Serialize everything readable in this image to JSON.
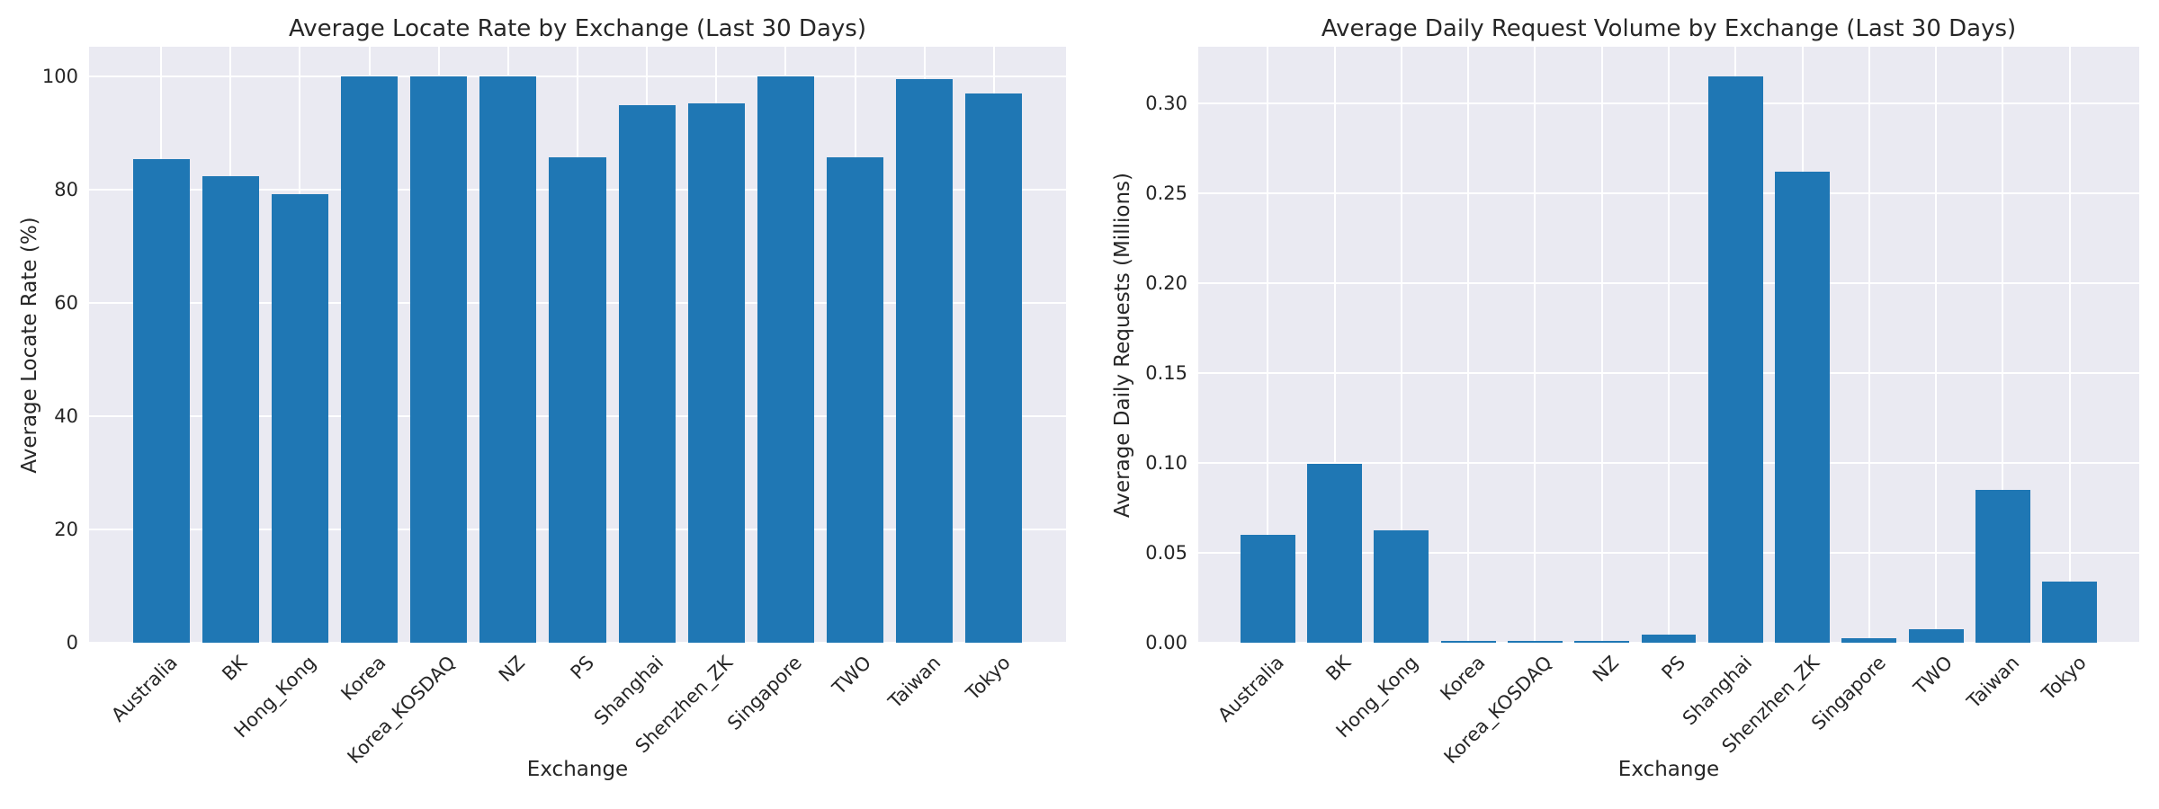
{
  "figure": {
    "background": "#ffffff"
  },
  "style": {
    "bar_color": "#1f77b4",
    "plot_background": "#eaeaf2",
    "grid_color": "#ffffff",
    "text_color": "#262626"
  },
  "chart_data": [
    {
      "type": "bar",
      "title": "Average Locate Rate by Exchange (Last 30 Days)",
      "xlabel": "Exchange",
      "ylabel": "Average Locate Rate (%)",
      "categories": [
        "Australia",
        "BK",
        "Hong_Kong",
        "Korea",
        "Korea_KOSDAQ",
        "NZ",
        "PS",
        "Shanghai",
        "Shenzhen_ZK",
        "Singapore",
        "TWO",
        "Taiwan",
        "Tokyo"
      ],
      "values": [
        85.5,
        82.5,
        79.2,
        100.0,
        100.0,
        100.0,
        85.7,
        95.0,
        95.3,
        100.0,
        85.7,
        99.6,
        97.1
      ],
      "yticks": [
        0,
        20,
        40,
        60,
        80,
        100
      ],
      "yticklabels": [
        "0",
        "20",
        "40",
        "60",
        "80",
        "100"
      ],
      "ylim": [
        0,
        105.3
      ],
      "grid": true,
      "legend": null,
      "x_tick_rotation": 45
    },
    {
      "type": "bar",
      "title": "Average Daily Request Volume by Exchange (Last 30 Days)",
      "xlabel": "Exchange",
      "ylabel": "Average Daily Requests (Millions)",
      "categories": [
        "Australia",
        "BK",
        "Hong_Kong",
        "Korea",
        "Korea_KOSDAQ",
        "NZ",
        "PS",
        "Shanghai",
        "Shenzhen_ZK",
        "Singapore",
        "TWO",
        "Taiwan",
        "Tokyo"
      ],
      "values": [
        0.06,
        0.0995,
        0.0625,
        0.0012,
        0.0008,
        0.0008,
        0.0045,
        0.315,
        0.262,
        0.0025,
        0.0075,
        0.085,
        0.034
      ],
      "yticks": [
        0.0,
        0.05,
        0.1,
        0.15,
        0.2,
        0.25,
        0.3
      ],
      "yticklabels": [
        "0.00",
        "0.05",
        "0.10",
        "0.15",
        "0.20",
        "0.25",
        "0.30"
      ],
      "ylim": [
        0,
        0.3315
      ],
      "grid": true,
      "legend": null,
      "x_tick_rotation": 45
    }
  ]
}
